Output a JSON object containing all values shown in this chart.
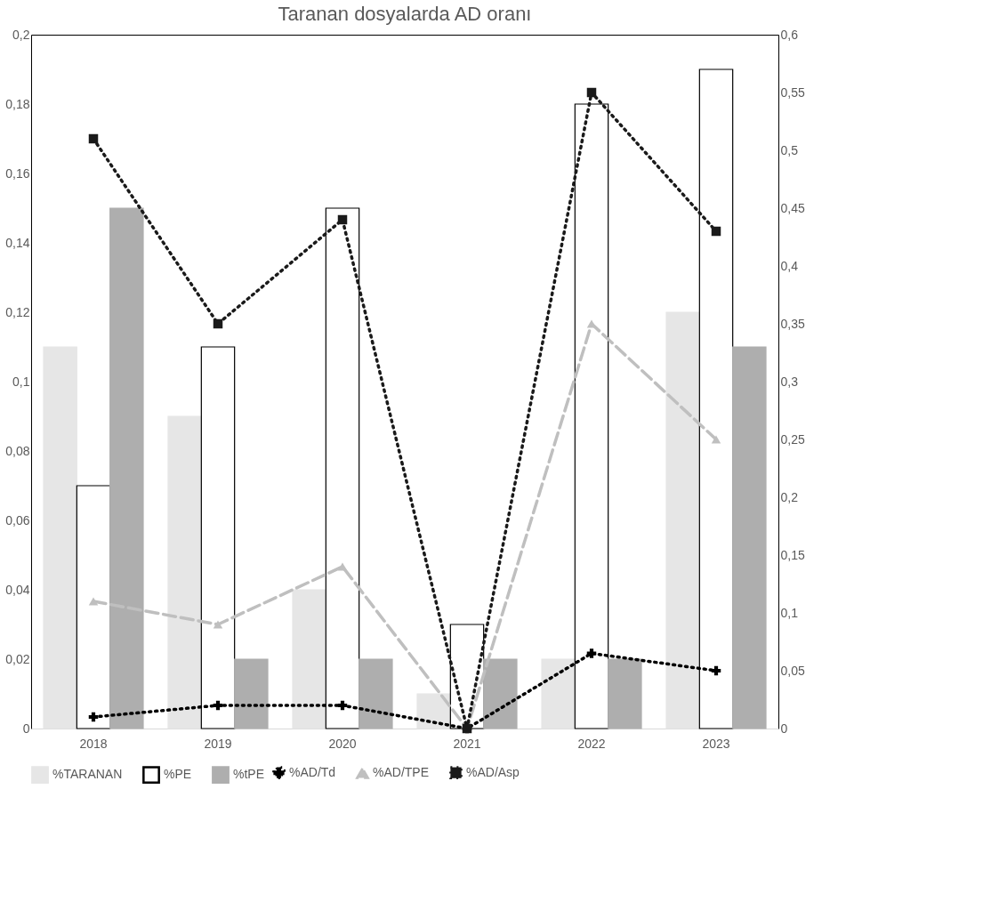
{
  "chart_data": {
    "type": "bar",
    "title": "Taranan dosyalarda AD oranı",
    "categories": [
      "2018",
      "2019",
      "2020",
      "2021",
      "2022",
      "2023"
    ],
    "series": [
      {
        "name": "%TARANAN",
        "color": "#e6e6e6",
        "values": [
          0.11,
          0.09,
          0.04,
          0.01,
          0.02,
          0.12
        ]
      },
      {
        "name": "%PE",
        "color": "#ffffff",
        "values": [
          0.07,
          0.11,
          0.15,
          0.03,
          0.18,
          0.19
        ]
      },
      {
        "name": "%tPE",
        "color": "#aeaeae",
        "values": [
          0.15,
          0.02,
          0.02,
          0.02,
          0.02,
          0.11
        ]
      },
      {
        "name": "%AD/Td",
        "type": "line",
        "axis": "y2",
        "color": "#000000",
        "line_style": "dotted",
        "marker": "cross",
        "values": [
          0.01,
          0.02,
          0.02,
          0,
          0.065,
          0.05
        ]
      },
      {
        "name": "%AD/TPE",
        "type": "line",
        "axis": "y2",
        "color": "#bfbfbf",
        "line_style": "dashed",
        "marker": "triangle",
        "values": [
          0.11,
          0.09,
          0.14,
          0,
          0.35,
          0.25
        ]
      },
      {
        "name": "%AD/Asp",
        "type": "line",
        "axis": "y2",
        "color": "#1a1a1a",
        "line_style": "dotted",
        "marker": "square",
        "values": [
          0.51,
          0.35,
          0.44,
          0,
          0.55,
          0.43
        ]
      }
    ],
    "ylim": [
      0,
      0.2
    ],
    "yticks": [
      0,
      {
        "value": 0.02,
        "label": "0,02"
      },
      {
        "value": 0.04,
        "label": "0,04"
      },
      {
        "value": 0.06,
        "label": "0,06"
      },
      {
        "value": 0.08,
        "label": "0,08"
      },
      {
        "value": 0.1,
        "label": "0,1"
      },
      {
        "value": 0.12,
        "label": "0,12"
      },
      {
        "value": 0.14,
        "label": "0,14"
      },
      {
        "value": 0.16,
        "label": "0,16"
      },
      {
        "value": 0.18,
        "label": "0,18"
      },
      {
        "value": 0.2,
        "label": "0,2"
      }
    ],
    "y2lim": [
      0,
      0.6
    ],
    "y2ticks": [
      0,
      {
        "value": 0.05,
        "label": "0,05"
      },
      {
        "value": 0.1,
        "label": "0,1"
      },
      {
        "value": 0.15,
        "label": "0,15"
      },
      {
        "value": 0.2,
        "label": "0,2"
      },
      {
        "value": 0.25,
        "label": "0,25"
      },
      {
        "value": 0.3,
        "label": "0,3"
      },
      {
        "value": 0.35,
        "label": "0,35"
      },
      {
        "value": 0.4,
        "label": "0,4"
      },
      {
        "value": 0.45,
        "label": "0,45"
      },
      {
        "value": 0.5,
        "label": "0,5"
      },
      {
        "value": 0.55,
        "label": "0,55"
      },
      {
        "value": 0.6,
        "label": "0,6"
      }
    ],
    "grid": false,
    "legend": "bottom"
  }
}
